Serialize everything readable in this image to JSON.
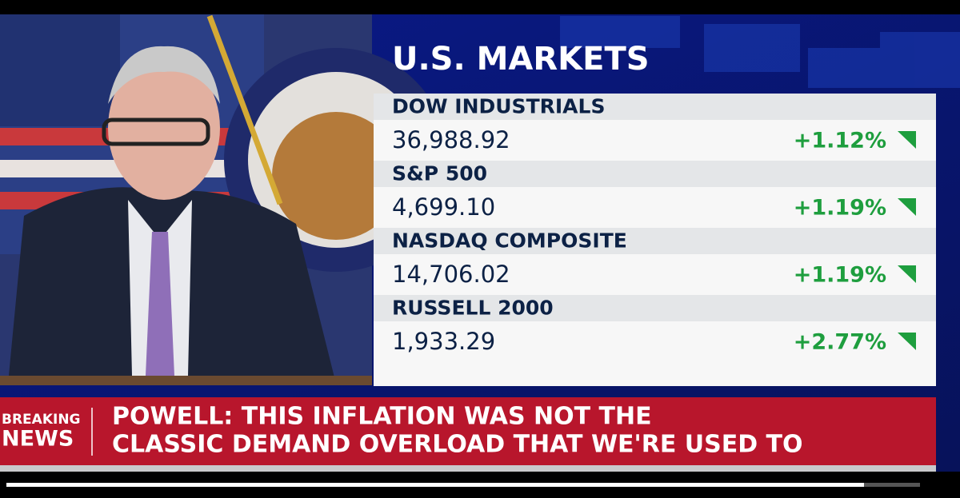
{
  "panel": {
    "title": "U.S. MARKETS",
    "rows": [
      {
        "name": "DOW INDUSTRIALS",
        "value": "36,988.92",
        "change": "+1.12%"
      },
      {
        "name": "S&P 500",
        "value": "4,699.10",
        "change": "+1.19%"
      },
      {
        "name": "NASDAQ COMPOSITE",
        "value": "14,706.02",
        "change": "+1.19%"
      },
      {
        "name": "RUSSELL 2000",
        "value": "1,933.29",
        "change": "+2.77%"
      }
    ]
  },
  "banner": {
    "tag_top": "BREAKING",
    "tag_bottom": "NEWS",
    "headline": [
      "POWELL: THIS INFLATION WAS NOT THE",
      "CLASSIC DEMAND OVERLOAD THAT WE'RE USED TO"
    ]
  }
}
